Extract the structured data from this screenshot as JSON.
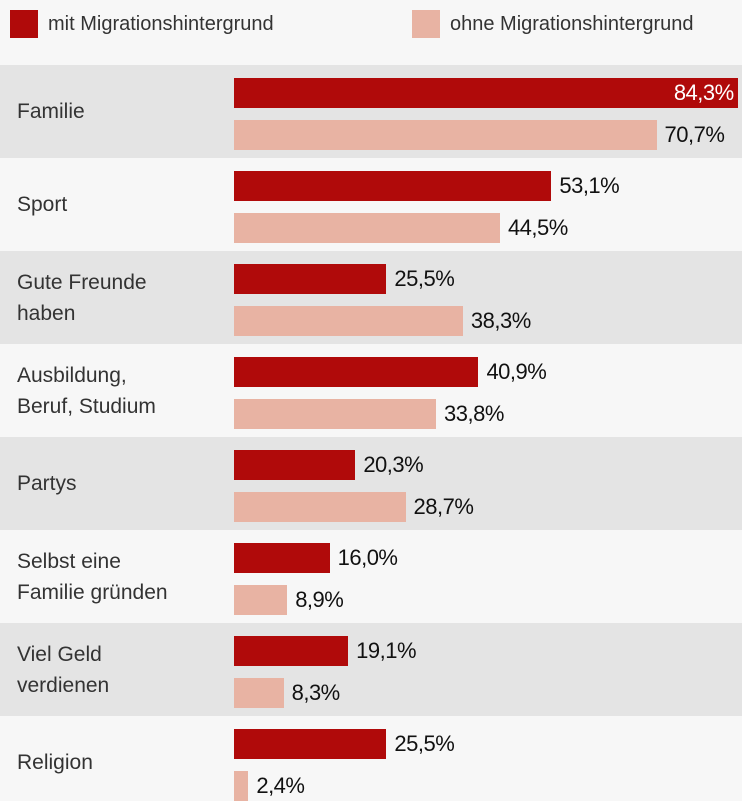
{
  "chart_data": {
    "type": "hbar",
    "categories": [
      "Familie",
      "Sport",
      "Gute Freunde\nhaben",
      "Ausbildung,\nBeruf, Studium",
      "Partys",
      "Selbst eine\nFamilie gründen",
      "Viel Geld\nverdienen",
      "Religion"
    ],
    "series": [
      {
        "name": "mit Migrationshintergrund",
        "color": "#b00a0a",
        "values": [
          84.3,
          53.1,
          25.5,
          40.9,
          20.3,
          16.0,
          19.1,
          25.5
        ],
        "value_labels": [
          "84,3%",
          "53,1%",
          "25,5%",
          "40,9%",
          "20,3%",
          "16,0%",
          "19,1%",
          "25,5%"
        ]
      },
      {
        "name": "ohne Migrationshintergrund",
        "color": "#e8b3a3",
        "values": [
          70.7,
          44.5,
          38.3,
          33.8,
          28.7,
          8.9,
          8.3,
          2.4
        ],
        "value_labels": [
          "70,7%",
          "44,5%",
          "38,3%",
          "33,8%",
          "28,7%",
          "8,9%",
          "8,3%",
          "2,4%"
        ]
      }
    ],
    "xlim": [
      0,
      85
    ]
  }
}
